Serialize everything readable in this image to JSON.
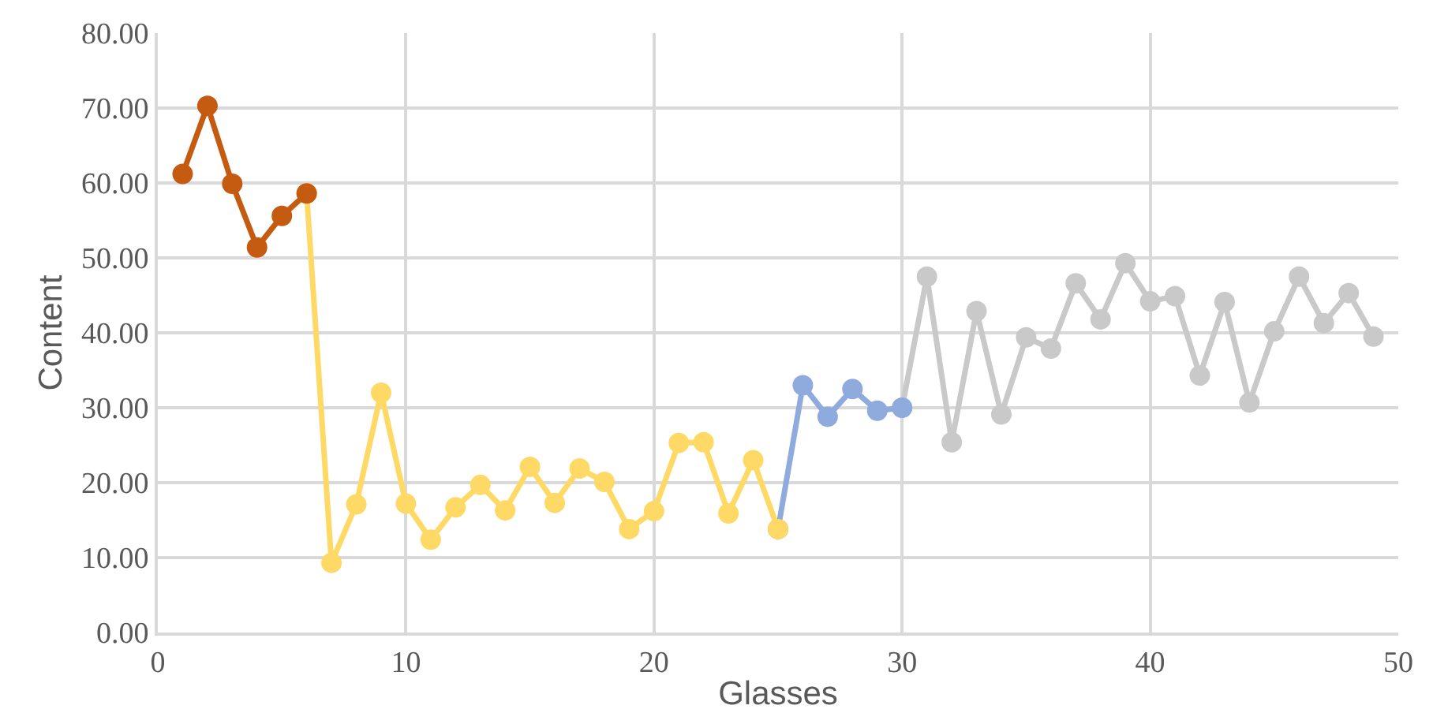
{
  "chart_data": {
    "type": "line",
    "xlabel": "Glasses",
    "ylabel": "Content",
    "series": [
      {
        "color": "#c55a11",
        "x": [
          1,
          2,
          3,
          4,
          5,
          6
        ],
        "values": [
          61.2,
          70.3,
          59.9,
          51.4,
          55.6,
          58.6
        ]
      },
      {
        "color": "#ffd966",
        "x": [
          6,
          7,
          8,
          9,
          10,
          11,
          12,
          13,
          14,
          15,
          16,
          17,
          18,
          19,
          20,
          21,
          22,
          23,
          24,
          25
        ],
        "values": [
          58.6,
          9.3,
          17.1,
          32.0,
          17.2,
          12.4,
          16.7,
          19.7,
          16.3,
          22.1,
          17.3,
          21.9,
          20.1,
          13.8,
          16.2,
          25.3,
          25.4,
          15.9,
          23.0,
          13.8
        ]
      },
      {
        "color": "#8faadc",
        "x": [
          25,
          26,
          27,
          28,
          29,
          30
        ],
        "values": [
          13.8,
          33.0,
          28.8,
          32.5,
          29.6,
          30.0
        ]
      },
      {
        "color": "#c9c9c9",
        "x": [
          30,
          31,
          32,
          33,
          34,
          35,
          36,
          37,
          38,
          39,
          40,
          41,
          42,
          43,
          44,
          45,
          46,
          47,
          48,
          49
        ],
        "values": [
          30.0,
          47.5,
          25.4,
          42.9,
          29.1,
          39.4,
          37.9,
          46.6,
          41.8,
          49.3,
          44.2,
          44.9,
          34.3,
          44.1,
          30.7,
          40.2,
          47.5,
          41.3,
          45.3,
          39.5
        ]
      }
    ],
    "xlim": [
      0,
      50
    ],
    "xticks": [
      0,
      10,
      20,
      30,
      40,
      50
    ],
    "ylim": [
      0,
      80
    ],
    "yticks": [
      {
        "value": 0,
        "label": "0.00"
      },
      {
        "value": 10,
        "label": "10.00"
      },
      {
        "value": 20,
        "label": "20.00"
      },
      {
        "value": 30,
        "label": "30.00"
      },
      {
        "value": 40,
        "label": "40.00"
      },
      {
        "value": 50,
        "label": "50.00"
      },
      {
        "value": 60,
        "label": "60.00"
      },
      {
        "value": 70,
        "label": "70.00"
      },
      {
        "value": 80,
        "label": "80.00"
      }
    ],
    "grid": true,
    "marker": "circle",
    "line_style": "solid"
  }
}
